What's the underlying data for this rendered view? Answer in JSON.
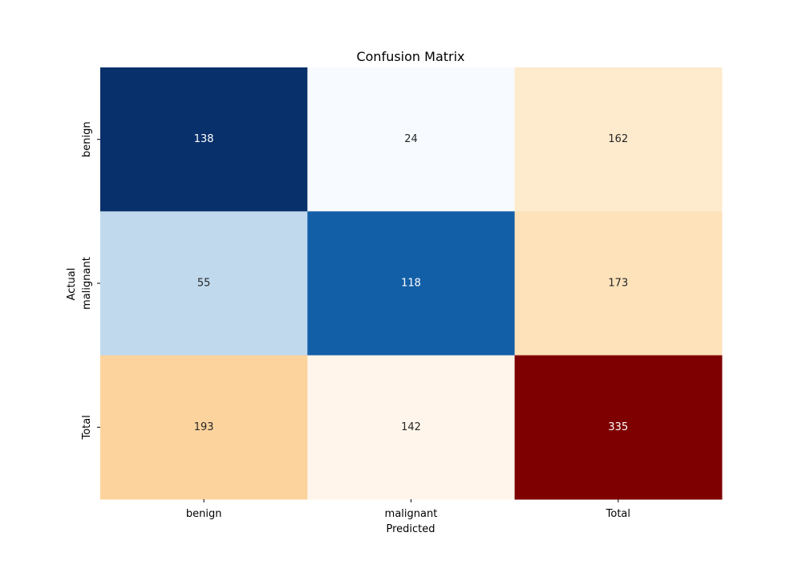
{
  "chart_data": {
    "type": "heatmap",
    "title": "Confusion Matrix",
    "xlabel": "Predicted",
    "ylabel": "Actual",
    "x_categories": [
      "benign",
      "malignant",
      "Total"
    ],
    "y_categories": [
      "benign",
      "malignant",
      "Total"
    ],
    "values": [
      [
        138,
        24,
        162
      ],
      [
        55,
        118,
        173
      ],
      [
        193,
        142,
        335
      ]
    ],
    "cells": [
      [
        {
          "value": 138,
          "color": "#08306b",
          "text_color": "#ffffff"
        },
        {
          "value": 24,
          "color": "#f7fbff",
          "text_color": "#262626"
        },
        {
          "value": 162,
          "color": "#feeacd",
          "text_color": "#262626"
        }
      ],
      [
        {
          "value": 55,
          "color": "#c0d9ed",
          "text_color": "#262626"
        },
        {
          "value": 118,
          "color": "#135fa7",
          "text_color": "#ffffff"
        },
        {
          "value": 173,
          "color": "#fde2ba",
          "text_color": "#262626"
        }
      ],
      [
        {
          "value": 193,
          "color": "#fcd39c",
          "text_color": "#262626"
        },
        {
          "value": 142,
          "color": "#fff5eb",
          "text_color": "#262626"
        },
        {
          "value": 335,
          "color": "#7f0000",
          "text_color": "#ffffff"
        }
      ]
    ],
    "colormaps": {
      "counts": "Blues",
      "totals": "OrRd"
    },
    "grid": false,
    "colorbar": false
  }
}
